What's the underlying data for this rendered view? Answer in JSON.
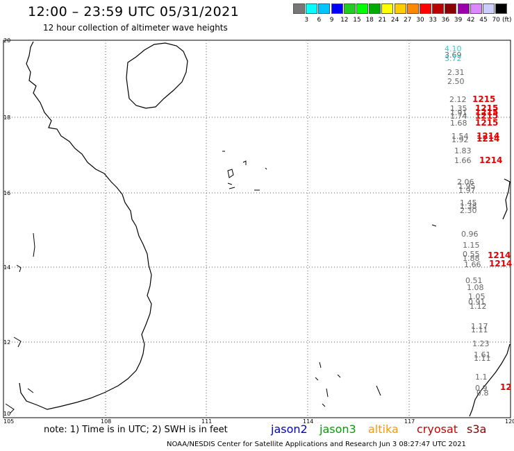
{
  "header": {
    "title": "12:00 – 23:59 UTC 05/31/2021",
    "subtitle": "12 hour collection of altimeter wave heights"
  },
  "legend_scale": {
    "colors": [
      "#777777",
      "#00ffff",
      "#00c4ff",
      "#0000ff",
      "#22cc22",
      "#00ff00",
      "#00aa00",
      "#ffff00",
      "#ffcc00",
      "#ff8800",
      "#ff0000",
      "#bb0000",
      "#880000",
      "#9900aa",
      "#dd88ff",
      "#ccccff",
      "#000000"
    ],
    "labels": [
      "3",
      "6",
      "9",
      "12",
      "15",
      "18",
      "21",
      "24",
      "27",
      "30",
      "33",
      "36",
      "39",
      "42",
      "45",
      "70"
    ],
    "unit": "(ft)"
  },
  "map": {
    "lat_labels": [
      "20",
      "18",
      "16",
      "14",
      "12",
      "10"
    ],
    "lon_labels": [
      "105",
      "108",
      "111",
      "114",
      "117",
      "120"
    ]
  },
  "wave_heights": [
    {
      "text": "4.10",
      "color": "#33cccc"
    },
    {
      "text": "3.69",
      "color": "#666666"
    },
    {
      "text": "3.72",
      "color": "#33cccc"
    },
    {
      "text": "2.31",
      "color": "#666666"
    },
    {
      "text": "2.50",
      "color": "#666666"
    },
    {
      "text": "2.12",
      "color": "#666666"
    },
    {
      "text": "1.35",
      "color": "#666666"
    },
    {
      "text": "1.91",
      "color": "#666666"
    },
    {
      "text": "1.74",
      "color": "#666666"
    },
    {
      "text": "1.68",
      "color": "#666666"
    },
    {
      "text": "1.54",
      "color": "#666666"
    },
    {
      "text": "1.92",
      "color": "#666666"
    },
    {
      "text": "1.83",
      "color": "#666666"
    },
    {
      "text": "1.66",
      "color": "#666666"
    },
    {
      "text": "2.06",
      "color": "#666666"
    },
    {
      "text": "1.95",
      "color": "#666666"
    },
    {
      "text": "1.97",
      "color": "#666666"
    },
    {
      "text": "1.45",
      "color": "#666666"
    },
    {
      "text": "1.38",
      "color": "#666666"
    },
    {
      "text": "2.30",
      "color": "#666666"
    },
    {
      "text": "0.96",
      "color": "#666666"
    },
    {
      "text": "1.15",
      "color": "#666666"
    },
    {
      "text": "0.55",
      "color": "#666666"
    },
    {
      "text": "1.88",
      "color": "#666666"
    },
    {
      "text": "1.66",
      "color": "#666666"
    },
    {
      "text": "0.51",
      "color": "#666666"
    },
    {
      "text": "1.08",
      "color": "#666666"
    },
    {
      "text": "1.05",
      "color": "#666666"
    },
    {
      "text": "0.91",
      "color": "#666666"
    },
    {
      "text": "1.12",
      "color": "#666666"
    },
    {
      "text": "1.17",
      "color": "#666666"
    },
    {
      "text": "1.11",
      "color": "#666666"
    },
    {
      "text": "1.23",
      "color": "#666666"
    },
    {
      "text": "1.61",
      "color": "#666666"
    },
    {
      "text": "1.11",
      "color": "#666666"
    },
    {
      "text": "1.1",
      "color": "#666666"
    },
    {
      "text": "0.9",
      "color": "#666666"
    },
    {
      "text": "0.8",
      "color": "#666666"
    }
  ],
  "pass_times": [
    "1215",
    "1215",
    "1215",
    "1215",
    "1215",
    "1214",
    "1214",
    "1214",
    "1214",
    "1214",
    "12"
  ],
  "footer": {
    "note": "note: 1) Time is in UTC; 2) SWH is in feet",
    "satellites": [
      {
        "name": "jason2",
        "color": "#0000cc"
      },
      {
        "name": "jason3",
        "color": "#00a000"
      },
      {
        "name": "altika",
        "color": "#ff9900"
      },
      {
        "name": "cryosat",
        "color": "#cc0000"
      },
      {
        "name": "s3a",
        "color": "#880000"
      }
    ],
    "credit": "NOAA/NESDIS Center for Satellite Applications and Research    Jun  3 08:27:47 UTC 2021"
  }
}
